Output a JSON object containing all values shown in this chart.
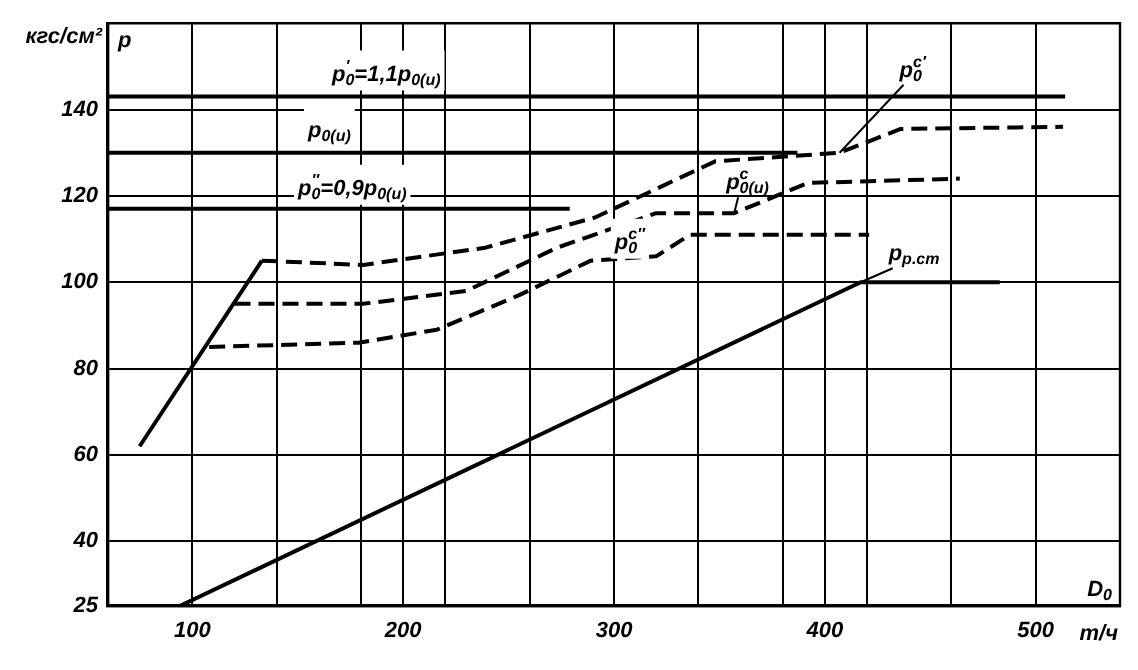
{
  "chart_data": {
    "type": "line",
    "xlabel": "D$_{0}$",
    "ylabel": "кгс/см²",
    "annotations": [
      "p",
      "т/ч"
    ],
    "xlim": [
      60,
      540
    ],
    "ylim": [
      25,
      160
    ],
    "xticks": [
      {
        "value": 100,
        "label": "100"
      },
      {
        "value": 140,
        "label": null
      },
      {
        "value": 180,
        "label": null
      },
      {
        "value": 200,
        "label": "200"
      },
      {
        "value": 220,
        "label": null
      },
      {
        "value": 260,
        "label": null
      },
      {
        "value": 300,
        "label": "300"
      },
      {
        "value": 340,
        "label": null
      },
      {
        "value": 380,
        "label": null
      },
      {
        "value": 400,
        "label": "400"
      },
      {
        "value": 420,
        "label": null
      },
      {
        "value": 460,
        "label": null
      },
      {
        "value": 500,
        "label": "500"
      }
    ],
    "yticks": [
      25,
      40,
      60,
      80,
      100,
      120,
      140,
      {
        "value": 160,
        "label": null
      }
    ],
    "grid": true,
    "marker": "none",
    "series": [
      {
        "color": "#000000",
        "line_style": "solid",
        "x": [
          75,
          133
        ],
        "values": [
          62,
          105
        ]
      },
      {
        "name": "p$_{0}$$^{c′}$",
        "color": "#000000",
        "line_style": "dashed",
        "x": [
          133,
          181,
          239,
          291,
          348,
          407,
          436,
          513
        ],
        "values": [
          105,
          104,
          108,
          115,
          128,
          130,
          135.5,
          136
        ]
      },
      {
        "name": "p$^{c}$$_{0(и)}$",
        "color": "#000000",
        "line_style": "dashed",
        "x": [
          120,
          181,
          230,
          273,
          320,
          357,
          392,
          464
        ],
        "values": [
          95,
          95,
          98,
          108,
          116,
          116,
          123,
          124
        ]
      },
      {
        "name": "p$_{0}$$^{c″}$",
        "color": "#000000",
        "line_style": "dashed",
        "x": [
          108,
          179,
          216,
          255,
          289,
          320,
          336,
          421
        ],
        "values": [
          85,
          86,
          89,
          97,
          105,
          106,
          111,
          111
        ]
      },
      {
        "name": "p$_{р.ст}$",
        "color": "#000000",
        "line_style": "solid",
        "x": [
          94,
          417,
          483
        ],
        "values": [
          25,
          100,
          100
        ]
      },
      {
        "name": "p$_{0}$$^{′}$=1,1p$_{0(и)}$",
        "color": "#000000",
        "line_style": "solid",
        "x": [
          60,
          514
        ],
        "values": [
          143,
          143
        ]
      },
      {
        "name": "p$_{0(и)}$",
        "color": "#000000",
        "line_style": "solid",
        "x": [
          60,
          387
        ],
        "values": [
          130,
          130
        ]
      },
      {
        "name": "p$_{0}$$^{″}$=0,9p$_{0(и)}$",
        "color": "#000000",
        "line_style": "solid",
        "x": [
          60,
          279
        ],
        "values": [
          117,
          117
        ]
      }
    ]
  }
}
